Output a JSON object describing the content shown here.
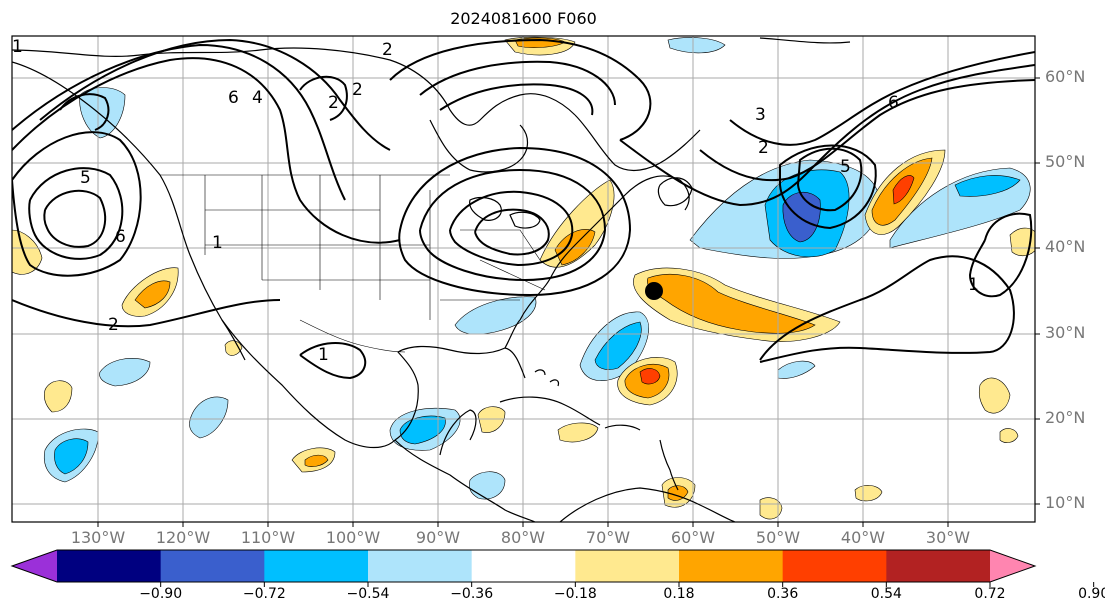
{
  "title": "2024081600 F060",
  "lat_labels": [
    "60°N",
    "50°N",
    "40°N",
    "30°N",
    "20°N",
    "10°N"
  ],
  "lon_labels": [
    "130°W",
    "120°W",
    "110°W",
    "100°W",
    "90°W",
    "80°W",
    "70°W",
    "60°W",
    "50°W",
    "40°W",
    "30°W"
  ],
  "colorbar": {
    "ticks": [
      "−0.90",
      "−0.72",
      "−0.54",
      "−0.36",
      "−0.18",
      "0.18",
      "0.36",
      "0.54",
      "0.72",
      "0.90"
    ],
    "colors": [
      "#9b30d9",
      "#000080",
      "#3a5fcd",
      "#00bfff",
      "#aee4fb",
      "#ffffff",
      "#ffe98f",
      "#ffa500",
      "#ff3f00",
      "#b22222",
      "#ff85b0"
    ]
  },
  "marker": {
    "label": "",
    "lon": -65,
    "lat": 35
  },
  "contour_labels": [
    "1",
    "2",
    "3",
    "4",
    "5",
    "6"
  ],
  "colors": {
    "land_border": "#000000",
    "grid": "#aaaaaa",
    "contour": "#000000"
  }
}
